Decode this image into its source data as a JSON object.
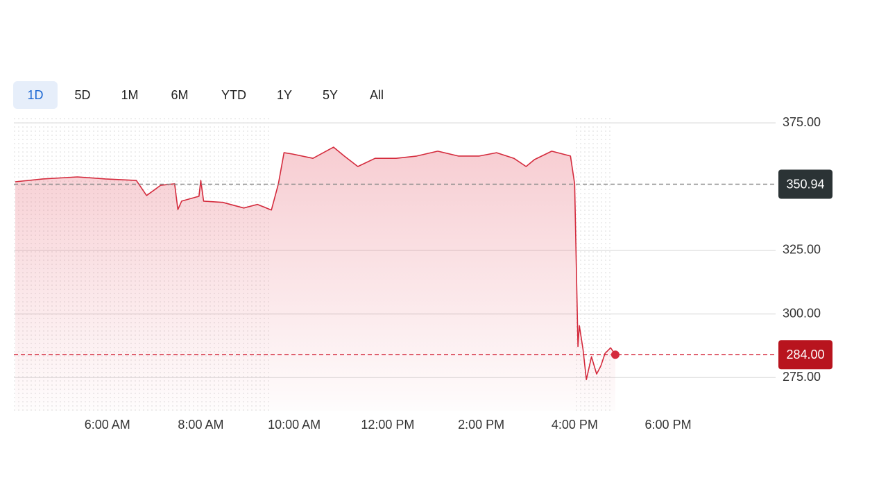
{
  "range_tabs": {
    "items": [
      "1D",
      "5D",
      "1M",
      "6M",
      "YTD",
      "1Y",
      "5Y",
      "All"
    ],
    "selected": 0
  },
  "chart_data": {
    "type": "line",
    "color": "#d42a3c",
    "grid": true,
    "x": [
      4.03,
      4.62,
      5.36,
      5.96,
      6.62,
      6.84,
      7.14,
      7.44,
      7.51,
      7.59,
      7.96,
      8.0,
      8.06,
      8.47,
      8.92,
      9.21,
      9.51,
      9.66,
      9.78,
      9.96,
      10.4,
      10.84,
      11.07,
      11.36,
      11.73,
      12.18,
      12.62,
      13.07,
      13.51,
      13.96,
      14.33,
      14.7,
      14.96,
      15.14,
      15.51,
      15.91,
      16.0,
      16.07,
      16.1,
      16.18,
      16.25,
      16.36,
      16.47,
      16.56,
      16.65,
      16.77,
      16.87
    ],
    "values": [
      351.9,
      353.0,
      353.8,
      353.0,
      352.4,
      346.5,
      350.5,
      351.1,
      341.0,
      344.3,
      346.2,
      352.4,
      344.3,
      343.8,
      341.6,
      343.0,
      340.8,
      351.1,
      363.3,
      362.8,
      361.1,
      365.5,
      362.0,
      357.9,
      361.1,
      361.1,
      362.0,
      363.9,
      362.0,
      362.0,
      363.3,
      361.1,
      357.9,
      360.6,
      363.9,
      362.0,
      351.1,
      287.2,
      295.4,
      285.9,
      274.2,
      283.2,
      276.4,
      279.6,
      284.5,
      286.7,
      284.0
    ],
    "xlim": [
      4,
      20.3
    ],
    "xticks": [
      {
        "value": 6,
        "label": "6:00 AM"
      },
      {
        "value": 8,
        "label": "8:00 AM"
      },
      {
        "value": 10,
        "label": "10:00 AM"
      },
      {
        "value": 12,
        "label": "12:00 PM"
      },
      {
        "value": 14,
        "label": "2:00 PM"
      },
      {
        "value": 16,
        "label": "4:00 PM"
      },
      {
        "value": 18,
        "label": "6:00 PM"
      }
    ],
    "ylim": [
      262,
      377.5
    ],
    "yticks": [
      {
        "value": 275,
        "label": "275.00"
      },
      {
        "value": 300,
        "label": "300.00"
      },
      {
        "value": 325,
        "label": "325.00"
      },
      {
        "value": 375,
        "label": "375.00"
      }
    ],
    "shaded_ranges": [
      [
        4,
        9.5
      ],
      [
        16,
        16.8
      ]
    ],
    "previous_close": {
      "value": 350.94,
      "color": "#8a8a8a",
      "box_color": "#2b3335"
    },
    "last_price": {
      "value": 284,
      "label": "284.00",
      "color": "#d42a3c",
      "box_color": "#b8141e"
    }
  }
}
